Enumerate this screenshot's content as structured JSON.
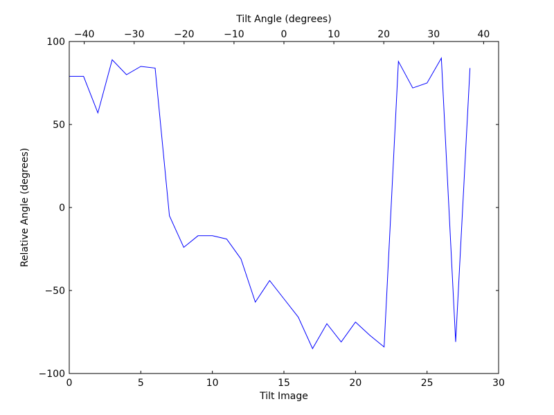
{
  "chart_data": {
    "type": "line",
    "xlabel": "Tilt Image",
    "ylabel": "Relative Angle (degrees)",
    "top_xlabel": "Tilt Angle (degrees)",
    "xlim": [
      0,
      30
    ],
    "ylim": [
      -100,
      100
    ],
    "top_xlim": [
      -43,
      43
    ],
    "x_ticks": [
      0,
      5,
      10,
      15,
      20,
      25,
      30
    ],
    "y_ticks": [
      -100,
      -50,
      0,
      50,
      100
    ],
    "y_tick_labels": [
      "−100",
      "−50",
      "0",
      "50",
      "100"
    ],
    "top_x_ticks": [
      -40,
      -30,
      -20,
      -10,
      0,
      10,
      20,
      30,
      40
    ],
    "top_x_tick_labels": [
      "−40",
      "−30",
      "−20",
      "−10",
      "0",
      "10",
      "20",
      "30",
      "40"
    ],
    "grid": false,
    "line_color": "#0000ff",
    "series": [
      {
        "x": [
          0,
          1,
          2,
          3,
          4,
          5,
          6,
          7,
          8,
          9,
          10,
          11,
          12,
          13,
          14,
          15,
          16,
          17,
          18,
          19,
          20,
          21,
          22,
          23,
          24,
          25,
          26,
          27,
          28
        ],
        "values": [
          79,
          79,
          57,
          89,
          80,
          85,
          84,
          -5,
          -24,
          -17,
          -17,
          -19,
          -31,
          -57,
          -44,
          -55,
          -66,
          -85,
          -70,
          -81,
          -69,
          -77,
          -84,
          88,
          72,
          75,
          90,
          -81,
          84
        ]
      }
    ]
  }
}
